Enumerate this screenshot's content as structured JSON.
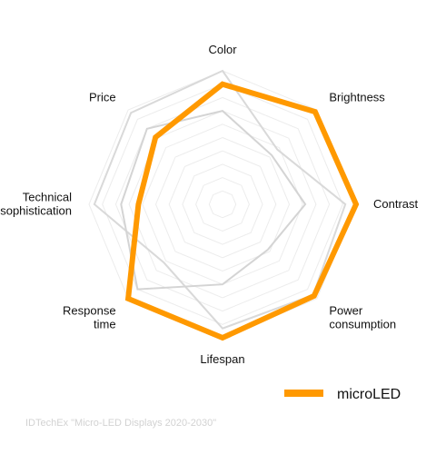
{
  "chart_data": {
    "type": "radar",
    "axes": [
      "Color",
      "Brightness",
      "Contrast",
      "Power consumption",
      "Lifespan",
      "Response time",
      "Technical sophistication",
      "Price"
    ],
    "axis_label_lines": [
      [
        "Color"
      ],
      [
        "Brightness"
      ],
      [
        "Contrast"
      ],
      [
        "Power",
        "consumption"
      ],
      [
        "Lifespan"
      ],
      [
        "Response",
        "time"
      ],
      [
        "Technical",
        "sophistication"
      ],
      [
        "Price"
      ]
    ],
    "scale_max": 10,
    "grid_levels": 10,
    "series": [
      {
        "name": "",
        "color": "#d9d9d9",
        "values": [
          10,
          5.8,
          9.2,
          9.6,
          9.3,
          6.2,
          9.6,
          9.7
        ]
      },
      {
        "name": "",
        "color": "#d4d4d4",
        "values": [
          7.0,
          5.2,
          6.2,
          4.8,
          6.0,
          9.0,
          7.6,
          8.0
        ]
      },
      {
        "name": "microLED",
        "color": "#ff9900",
        "values": [
          9.0,
          9.8,
          10,
          9.7,
          10,
          10,
          6.3,
          7.1
        ]
      }
    ],
    "legend": {
      "position": "bottom-right",
      "entries": [
        "microLED"
      ]
    },
    "source": "IDTechEx \"Micro-LED Displays 2020-2030\""
  }
}
